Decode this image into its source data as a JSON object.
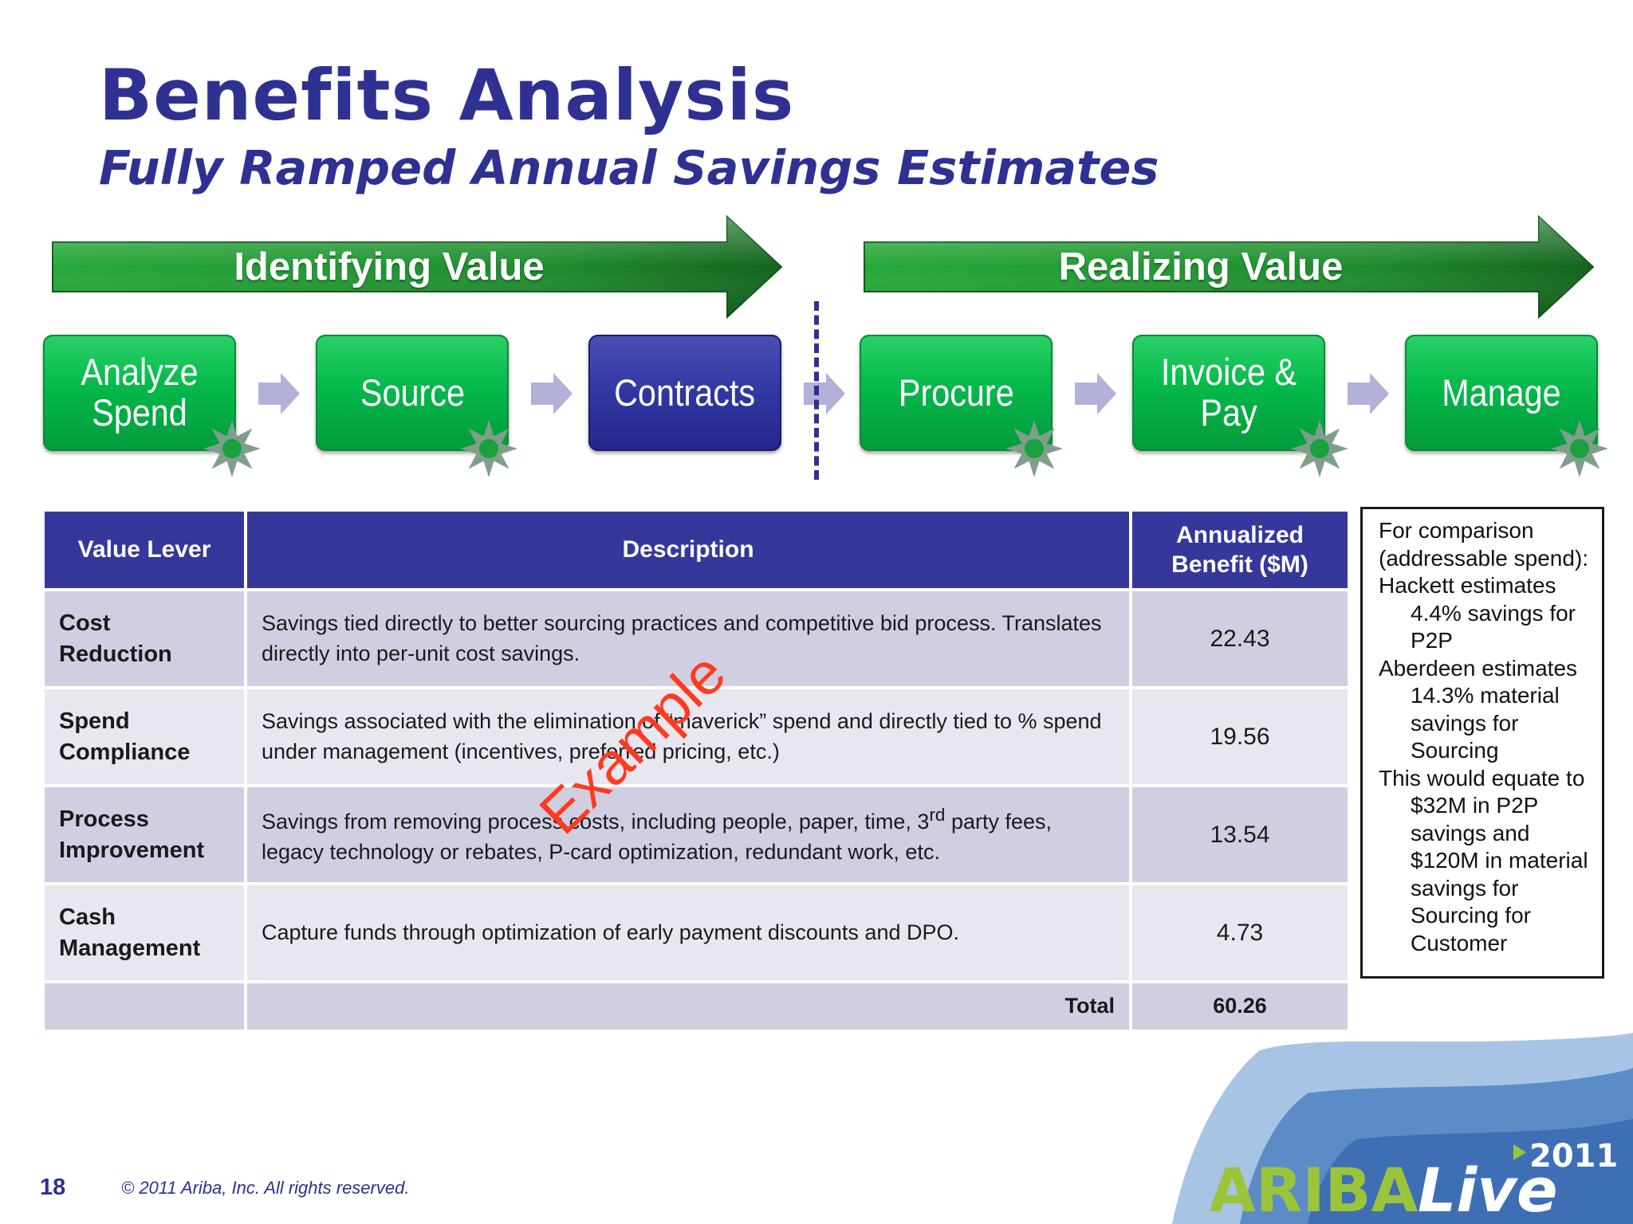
{
  "slide": {
    "title": "Benefits Analysis",
    "subtitle": "Fully Ramped Annual Savings Estimates"
  },
  "phases": [
    {
      "label": "Identifying Value"
    },
    {
      "label": "Realizing Value"
    }
  ],
  "steps": [
    {
      "label": "Analyze Spend",
      "color": "#05b84a"
    },
    {
      "label": "Source",
      "color": "#05b84a"
    },
    {
      "label": "Contracts",
      "color": "#3236a2"
    },
    {
      "label": "Procure",
      "color": "#05b84a"
    },
    {
      "label": "Invoice & Pay",
      "color": "#05b84a"
    },
    {
      "label": "Manage",
      "color": "#05b84a"
    }
  ],
  "table": {
    "headers": [
      "Value Lever",
      "Description",
      "Annualized Benefit ($M)"
    ],
    "rows": [
      {
        "lever": "Cost Reduction",
        "description": "Savings tied directly to better sourcing practices and competitive bid process.  Translates directly into per-unit cost savings.",
        "benefit": "22.43"
      },
      {
        "lever": "Spend Compliance",
        "description": "Savings associated with the elimination of “maverick” spend and directly tied to % spend under management (incentives, preferred pricing, etc.)",
        "benefit": "19.56"
      },
      {
        "lever": "Process Improvement",
        "description_pre": "Savings from removing process costs, including people, paper, time, 3",
        "description_sup": "rd",
        "description_post": " party fees, legacy technology or rebates, P-card optimization, redundant work, etc.",
        "benefit": "13.54"
      },
      {
        "lever": "Cash Management",
        "description": "Capture funds through optimization of early payment discounts and DPO.",
        "benefit": "4.73"
      }
    ],
    "total_label": "Total",
    "total_value": "60.26"
  },
  "watermark": "Example",
  "comparison": {
    "lines": [
      {
        "text": "For comparison (addressable spend):",
        "indent": false
      },
      {
        "text": "Hackett estimates",
        "indent": false
      },
      {
        "text": "4.4% savings for P2P",
        "indent": true
      },
      {
        "text": "Aberdeen estimates",
        "indent": false
      },
      {
        "text": "14.3% material savings for Sourcing",
        "indent": true
      },
      {
        "text": "This would equate to",
        "indent": false
      },
      {
        "text": "$32M in P2P savings and $120M in material savings for Sourcing for Customer",
        "indent": true
      }
    ]
  },
  "footer": {
    "page_number": "18",
    "copyright": "© 2011 Ariba, Inc. All rights reserved."
  },
  "brand": {
    "logo_text_1": "ARIBA",
    "logo_text_2": "Live",
    "year": "2011"
  },
  "colors": {
    "title": "#2e3192",
    "header_bg": "#36379a",
    "row_dark": "#d0cfe2",
    "row_light": "#e8e7f0",
    "step_green": "#05b84a",
    "step_blue": "#3236a2",
    "watermark": "#ff3b1f"
  }
}
